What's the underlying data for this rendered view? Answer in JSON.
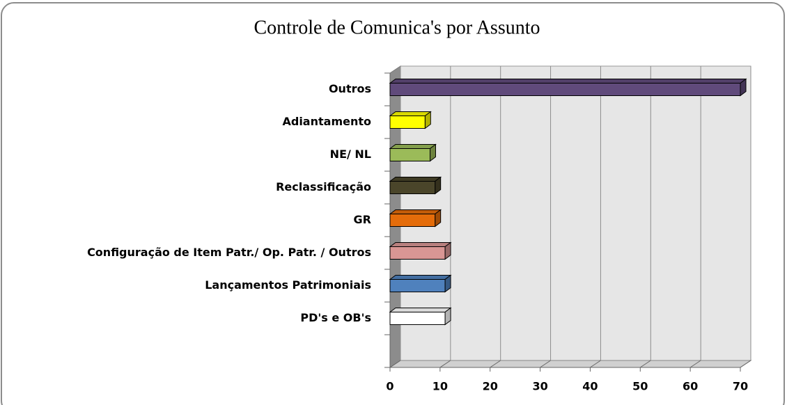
{
  "chart_data": {
    "type": "bar",
    "orientation": "horizontal",
    "three_d": true,
    "title": "Controle de Comunica's por Assunto",
    "categories": [
      "Outros",
      "Adiantamento",
      "NE/ NL",
      "Reclassificação",
      "GR",
      "Configuração de Item Patr./ Op. Patr. / Outros",
      "Lançamentos Patrimoniais",
      "PD's e OB's",
      null
    ],
    "values": [
      70,
      7,
      8,
      9,
      9,
      11,
      11,
      11,
      null
    ],
    "colors": [
      "#604a7b",
      "#ffff00",
      "#9bbb59",
      "#4a452a",
      "#e46c0a",
      "#d99694",
      "#4f81bd",
      "#ffffff",
      null
    ],
    "xlim": [
      0,
      70
    ],
    "xticks": [
      0,
      10,
      20,
      30,
      40,
      50,
      60,
      70
    ],
    "grid": true
  }
}
